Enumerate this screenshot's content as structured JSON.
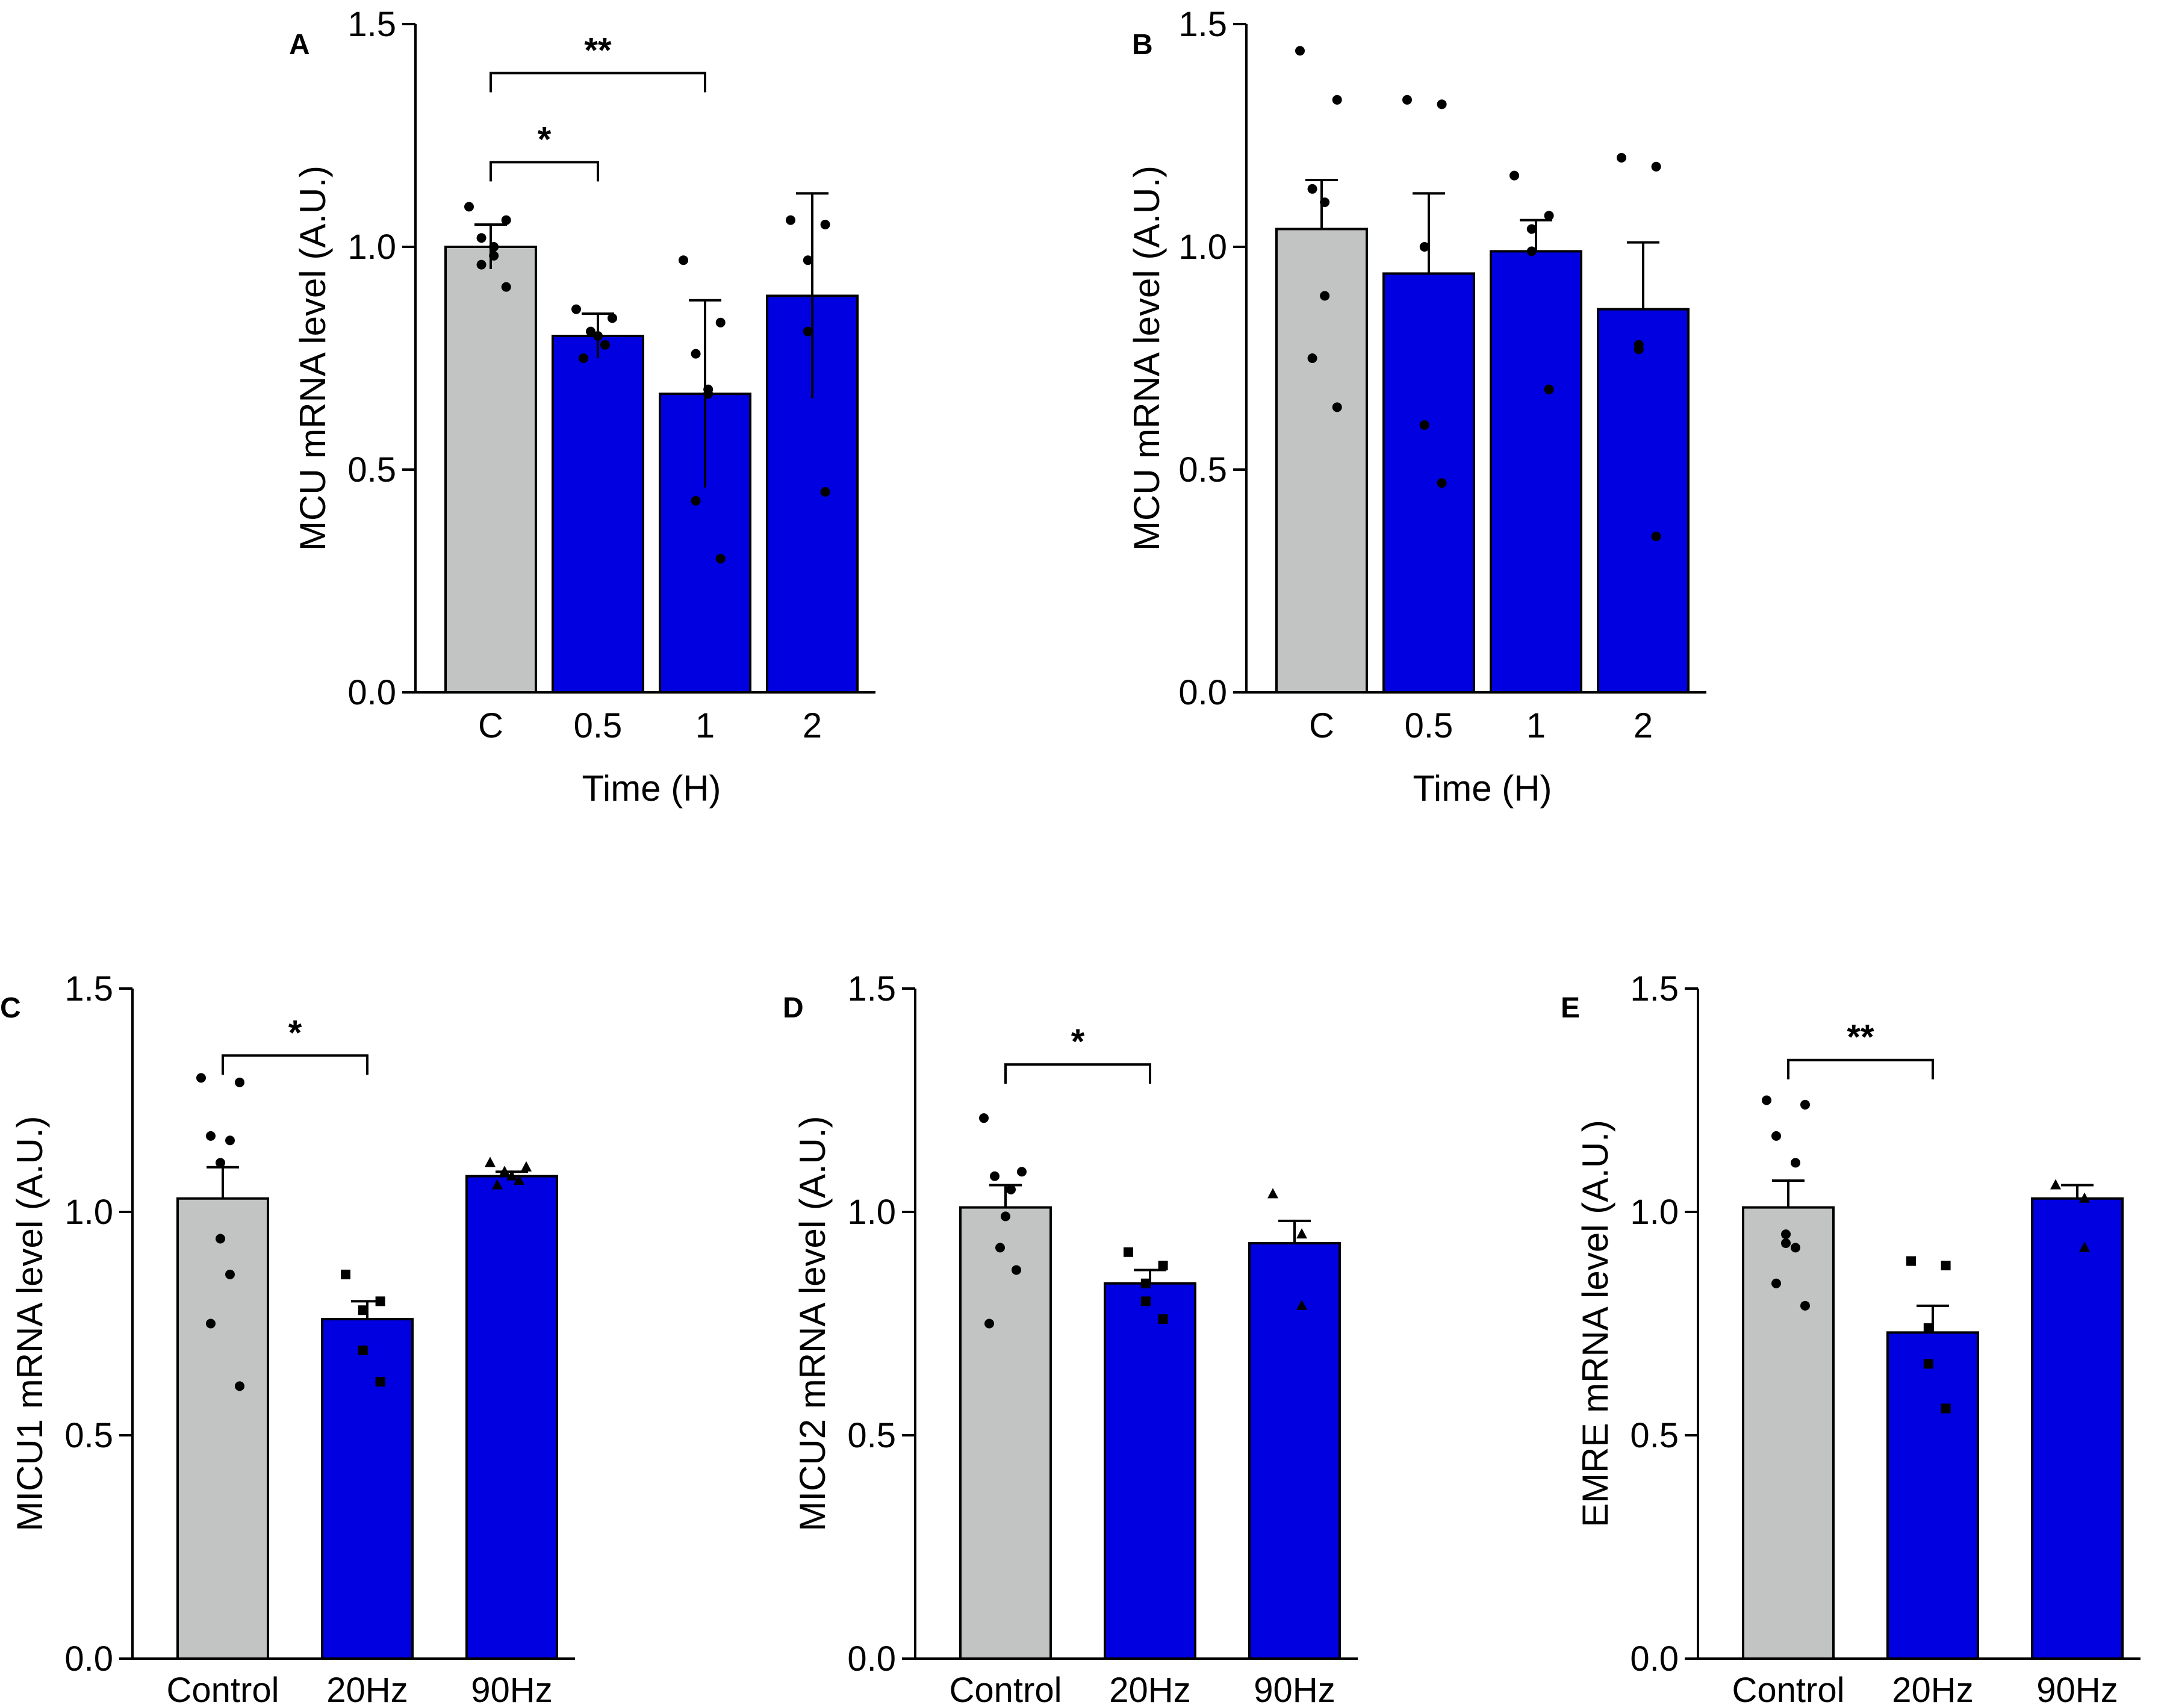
{
  "colors": {
    "control": "#c2c4c3",
    "treated": "#0000e1",
    "outline": "#000000"
  },
  "chart_data": [
    {
      "panel": "A",
      "type": "bar",
      "title": "",
      "xlabel": "Time  (H)",
      "ylabel": "MCU mRNA level (A.U.)",
      "ylim": [
        0,
        1.5
      ],
      "yticks": [
        "0.0",
        "0.5",
        "1.0",
        "1.5"
      ],
      "categories": [
        "C",
        "0.5",
        "1",
        "2"
      ],
      "values": [
        1.0,
        0.8,
        0.67,
        0.89
      ],
      "errors": [
        0.05,
        0.05,
        0.21,
        0.23
      ],
      "error_style": "sd",
      "marker": "circle",
      "points": [
        [
          1.09,
          1.06,
          1.02,
          1.0,
          0.98,
          0.96,
          0.91
        ],
        [
          0.86,
          0.84,
          0.81,
          0.8,
          0.78,
          0.75
        ],
        [
          0.97,
          0.83,
          0.76,
          0.68,
          0.67,
          0.43,
          0.3
        ],
        [
          1.06,
          1.05,
          0.97,
          0.81,
          0.45
        ]
      ],
      "significance": [
        {
          "from": 0,
          "to": 1,
          "label": "*",
          "level": 1.19
        },
        {
          "from": 0,
          "to": 2,
          "label": "**",
          "level": 1.39
        }
      ]
    },
    {
      "panel": "B",
      "type": "bar",
      "title": "",
      "xlabel": "Time  (H)",
      "ylabel": "MCU mRNA level (A.U.)",
      "ylim": [
        0,
        1.5
      ],
      "yticks": [
        "0.0",
        "0.5",
        "1.0",
        "1.5"
      ],
      "categories": [
        "C",
        "0.5",
        "1",
        "2"
      ],
      "values": [
        1.04,
        0.94,
        0.99,
        0.86
      ],
      "errors": [
        0.11,
        0.18,
        0.07,
        0.15
      ],
      "error_style": "sem",
      "marker": "circle",
      "points": [
        [
          1.44,
          1.33,
          1.13,
          1.1,
          0.89,
          0.75,
          0.64
        ],
        [
          1.33,
          1.32,
          1.0,
          0.6,
          0.47
        ],
        [
          1.16,
          1.07,
          1.04,
          0.99,
          0.68
        ],
        [
          1.2,
          1.18,
          0.78,
          0.77,
          0.35
        ]
      ],
      "significance": []
    },
    {
      "panel": "C",
      "type": "bar",
      "title": "",
      "xlabel": "",
      "ylabel": "MICU1 mRNA level (A.U.)",
      "ylim": [
        0,
        1.5
      ],
      "yticks": [
        "0.0",
        "0.5",
        "1.0",
        "1.5"
      ],
      "categories": [
        "Control",
        "20Hz",
        "90Hz"
      ],
      "values": [
        1.03,
        0.76,
        1.08
      ],
      "errors": [
        0.07,
        0.04,
        0.01
      ],
      "error_style": "sem",
      "markers": [
        "circle",
        "square",
        "triangle"
      ],
      "points": [
        [
          1.3,
          1.29,
          1.17,
          1.16,
          1.11,
          0.94,
          0.86,
          0.75,
          0.61
        ],
        [
          0.86,
          0.8,
          0.78,
          0.69,
          0.62
        ],
        [
          1.11,
          1.1,
          1.09,
          1.08,
          1.07,
          1.06
        ]
      ],
      "significance": [
        {
          "from": 0,
          "to": 1,
          "label": "*",
          "level": 1.35
        }
      ]
    },
    {
      "panel": "D",
      "type": "bar",
      "title": "",
      "xlabel": "",
      "ylabel": "MICU2 mRNA level (A.U.)",
      "ylim": [
        0,
        1.5
      ],
      "yticks": [
        "0.0",
        "0.5",
        "1.0",
        "1.5"
      ],
      "categories": [
        "Control",
        "20Hz",
        "90Hz"
      ],
      "values": [
        1.01,
        0.84,
        0.93
      ],
      "errors": [
        0.05,
        0.03,
        0.05
      ],
      "error_style": "sem",
      "markers": [
        "circle",
        "square",
        "triangle"
      ],
      "points": [
        [
          1.21,
          1.09,
          1.08,
          1.05,
          0.99,
          0.92,
          0.87,
          0.75
        ],
        [
          0.91,
          0.88,
          0.84,
          0.8,
          0.76
        ],
        [
          1.04,
          0.95,
          0.79
        ]
      ],
      "significance": [
        {
          "from": 0,
          "to": 1,
          "label": "*",
          "level": 1.33
        }
      ]
    },
    {
      "panel": "E",
      "type": "bar",
      "title": "",
      "xlabel": "",
      "ylabel": "EMRE mRNA level (A.U.)",
      "ylim": [
        0,
        1.5
      ],
      "yticks": [
        "0.0",
        "0.5",
        "1.0",
        "1.5"
      ],
      "categories": [
        "Control",
        "20Hz",
        "90Hz"
      ],
      "values": [
        1.01,
        0.73,
        1.03
      ],
      "errors": [
        0.06,
        0.06,
        0.03
      ],
      "error_style": "sem",
      "markers": [
        "circle",
        "square",
        "triangle"
      ],
      "points": [
        [
          1.25,
          1.24,
          1.17,
          1.11,
          0.95,
          0.93,
          0.92,
          0.84,
          0.79
        ],
        [
          0.89,
          0.88,
          0.74,
          0.66,
          0.56
        ],
        [
          1.06,
          1.03,
          0.92
        ]
      ],
      "significance": [
        {
          "from": 0,
          "to": 1,
          "label": "**",
          "level": 1.34
        }
      ]
    }
  ]
}
